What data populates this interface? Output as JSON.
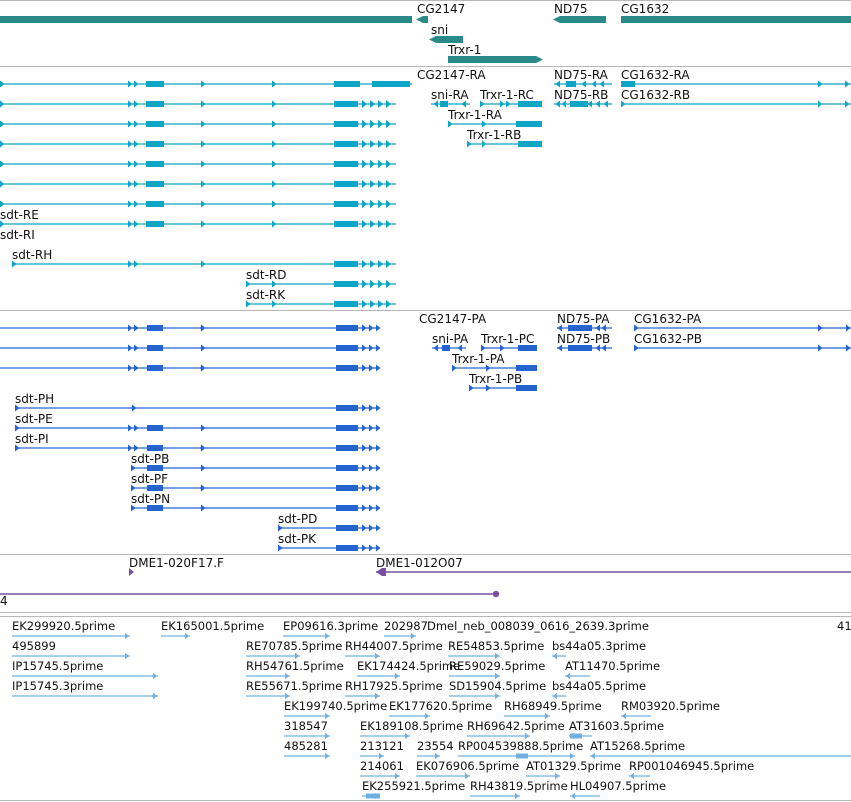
{
  "colors": {
    "gene": "#2a8a8a",
    "transcript": "#0ea5c6",
    "protein": "#2563d0",
    "clone": "#7a4fa0",
    "est": "#6fb0e0",
    "separator": "#b8b8b8"
  },
  "tracks": {
    "genes": {
      "labels": [
        "CG2147",
        "ND75",
        "CG1632",
        "sni",
        "Trxr-1"
      ]
    },
    "transcripts": {
      "labels": [
        "CG2147-RA",
        "ND75-RA",
        "CG1632-RA",
        "sni-RA",
        "Trxr-1-RC",
        "ND75-RB",
        "CG1632-RB",
        "Trxr-1-RA",
        "Trxr-1-RB",
        "sdt-RE",
        "sdt-RI",
        "sdt-RH",
        "sdt-RD",
        "sdt-RK"
      ]
    },
    "proteins": {
      "labels": [
        "CG2147-PA",
        "ND75-PA",
        "CG1632-PA",
        "sni-PA",
        "Trxr-1-PC",
        "ND75-PB",
        "CG1632-PB",
        "Trxr-1-PA",
        "Trxr-1-PB",
        "sdt-PH",
        "sdt-PE",
        "sdt-PI",
        "sdt-PB",
        "sdt-PF",
        "sdt-PN",
        "sdt-PD",
        "sdt-PK"
      ]
    },
    "clones": {
      "labels": [
        "DME1-020F17.F",
        "DME1-012O07",
        "4"
      ]
    },
    "ests": {
      "labels": [
        "EK299920.5prime",
        "EK165001.5prime",
        "EP09616.3prime",
        "202987",
        "Dmel_neb_008039_0616_2639.3prime",
        "41",
        "495899",
        "RE70785.5prime",
        "RH44007.5prime",
        "RE54853.5prime",
        "bs44a05.3prime",
        "IP15745.5prime",
        "RH54761.5prime",
        "EK174424.5prime",
        "RE59029.5prime",
        "AT11470.5prime",
        "IP15745.3prime",
        "RE55671.5prime",
        "RH17925.5prime",
        "SD15904.5prime",
        "bs44a05.5prime",
        "EK199740.5prime",
        "EK177620.5prime",
        "RH68949.5prime",
        "RM03920.5prime",
        "318547",
        "EK189108.5prime",
        "RH69642.5prime",
        "AT31603.5prime",
        "485281",
        "213121",
        "23554",
        "RP004539888.5prime",
        "AT15268.5prime",
        "214061",
        "EK076906.5prime",
        "AT01329.5prime",
        "RP001046945.5prime",
        "EK255921.5prime",
        "RH43819.5prime",
        "HL04907.5prime"
      ]
    }
  }
}
